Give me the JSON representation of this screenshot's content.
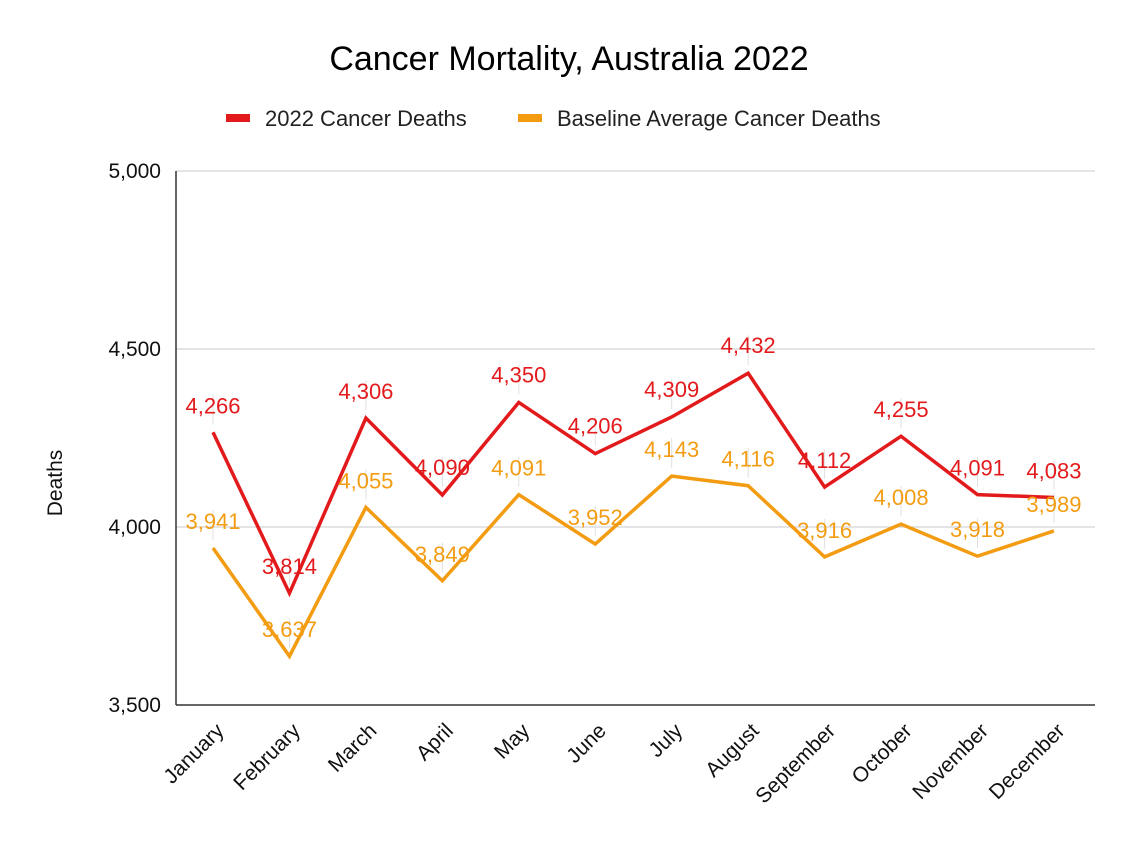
{
  "chart_data": {
    "type": "line",
    "title": "Cancer Mortality, Australia 2022",
    "ylabel": "Deaths",
    "xlabel": "",
    "ylim": [
      3500,
      5000
    ],
    "yticks": [
      3500,
      4000,
      4500,
      5000
    ],
    "ytick_labels": [
      "3,500",
      "4,000",
      "4,500",
      "5,000"
    ],
    "categories": [
      "January",
      "February",
      "March",
      "April",
      "May",
      "June",
      "July",
      "August",
      "September",
      "October",
      "November",
      "December"
    ],
    "grid": true,
    "legend": "top",
    "series": [
      {
        "name": "2022 Cancer Deaths",
        "color": "#e31a1c",
        "values": [
          4266,
          3814,
          4306,
          4090,
          4350,
          4206,
          4309,
          4432,
          4112,
          4255,
          4091,
          4083
        ],
        "labels": [
          "4,266",
          "3,814",
          "4,306",
          "4,090",
          "4,350",
          "4,206",
          "4,309",
          "4,432",
          "4,112",
          "4,255",
          "4,091",
          "4,083"
        ]
      },
      {
        "name": "Baseline Average Cancer Deaths",
        "color": "#f39c12",
        "values": [
          3941,
          3637,
          4055,
          3849,
          4091,
          3952,
          4143,
          4116,
          3916,
          4008,
          3918,
          3989
        ],
        "labels": [
          "3,941",
          "3,637",
          "4,055",
          "3,849",
          "4,091",
          "3,952",
          "4,143",
          "4,116",
          "3,916",
          "4,008",
          "3,918",
          "3,989"
        ]
      }
    ]
  }
}
